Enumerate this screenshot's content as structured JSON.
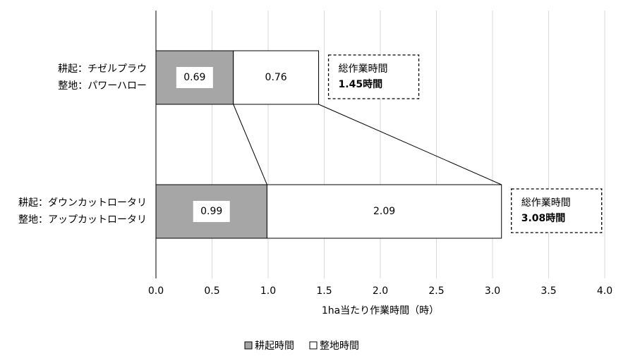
{
  "chart_data": {
    "type": "stacked-bar-horizontal",
    "categories": [
      [
        "耕起：チゼルプラウ",
        "整地：パワーハロー"
      ],
      [
        "耕起：ダウンカットロータリ",
        "整地：アップカットロータリ"
      ]
    ],
    "series": [
      {
        "name": "耕起時間",
        "color": "#a6a6a6",
        "values": [
          0.69,
          0.99
        ]
      },
      {
        "name": "整地時間",
        "color": "#ffffff",
        "values": [
          0.76,
          2.09
        ]
      }
    ],
    "annotations": [
      [
        "総作業時間",
        "1.45時間"
      ],
      [
        "総作業時間",
        "3.08時間"
      ]
    ],
    "x_label": "1ha当たり作業時間（時）",
    "xlim": [
      0,
      4
    ],
    "xticks": [
      {
        "value": 0,
        "label": "0.0"
      },
      {
        "value": 0.5,
        "label": "0.5"
      },
      {
        "value": 1,
        "label": "1.0"
      },
      {
        "value": 1.5,
        "label": "1.5"
      },
      {
        "value": 2,
        "label": "2.0"
      },
      {
        "value": 2.5,
        "label": "2.5"
      },
      {
        "value": 3,
        "label": "3.0"
      },
      {
        "value": 3.5,
        "label": "3.5"
      },
      {
        "value": 4,
        "label": "4.0"
      }
    ],
    "grid": true,
    "legend": "bottom"
  }
}
